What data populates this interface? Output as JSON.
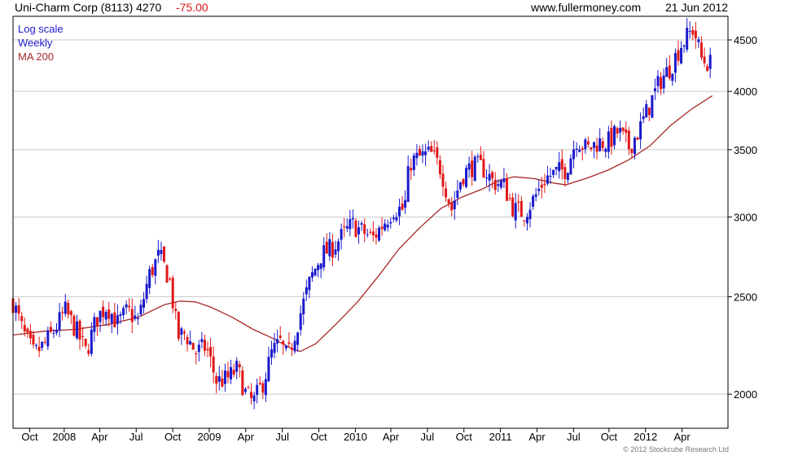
{
  "header": {
    "instrument": "Uni-Charm Corp (8113) 4270",
    "change": "-75.00",
    "site": "www.fullermoney.com",
    "date": "21 Jun 2012"
  },
  "legend": {
    "scale_label": "Log scale",
    "period_label": "Weekly",
    "ma_label": "MA 200"
  },
  "footer": {
    "copyright": "© 2012 Stockcube Research Ltd"
  },
  "colors": {
    "up": "#1a1acc",
    "down": "#e01818",
    "ma": "#a82828",
    "grid": "#c8c8c8",
    "axis": "#000000",
    "text": "#000000",
    "scale_text": "#1a1acc",
    "period_text": "#1a1acc",
    "ma_text": "#a82828",
    "change_text": "#e01818",
    "footer_text": "#777777"
  },
  "chart_data": {
    "type": "candlestick",
    "scale": "log",
    "period": "weekly",
    "ylim": [
      1850,
      4750
    ],
    "yticks": [
      2000,
      2500,
      3000,
      3500,
      4000,
      4500
    ],
    "grid": true,
    "x_ticks": [
      "Oct",
      "2008",
      "Apr",
      "Jul",
      "Oct",
      "2009",
      "Apr",
      "Jul",
      "Oct",
      "2010",
      "Apr",
      "Jul",
      "Oct",
      "2011",
      "Apr",
      "Jul",
      "Oct",
      "2012",
      "Apr"
    ],
    "x_tick_positions": [
      1.6,
      4.9,
      8.3,
      11.8,
      15.3,
      18.8,
      22.3,
      25.8,
      29.3,
      32.8,
      36.2,
      39.7,
      43.2,
      46.7,
      50.2,
      53.7,
      57.1,
      60.6,
      64.1
    ],
    "x_range": [
      0,
      68.5
    ],
    "ma_line": [
      [
        0,
        2290
      ],
      [
        3,
        2310
      ],
      [
        6,
        2320
      ],
      [
        9,
        2345
      ],
      [
        12,
        2385
      ],
      [
        14.5,
        2455
      ],
      [
        16,
        2475
      ],
      [
        17.5,
        2470
      ],
      [
        19,
        2440
      ],
      [
        21,
        2385
      ],
      [
        23,
        2320
      ],
      [
        25,
        2270
      ],
      [
        26.5,
        2225
      ],
      [
        27.5,
        2205
      ],
      [
        29,
        2245
      ],
      [
        31,
        2350
      ],
      [
        33,
        2470
      ],
      [
        35,
        2620
      ],
      [
        37,
        2790
      ],
      [
        39,
        2930
      ],
      [
        41,
        3060
      ],
      [
        43,
        3140
      ],
      [
        45,
        3200
      ],
      [
        46.5,
        3260
      ],
      [
        48,
        3290
      ],
      [
        50,
        3275
      ],
      [
        52,
        3240
      ],
      [
        53,
        3230
      ],
      [
        55,
        3280
      ],
      [
        57,
        3340
      ],
      [
        59,
        3420
      ],
      [
        61,
        3530
      ],
      [
        63,
        3700
      ],
      [
        65,
        3840
      ],
      [
        67,
        3960
      ]
    ],
    "candle_anchors": [
      [
        0,
        2470
      ],
      [
        1,
        2300
      ],
      [
        2,
        2190
      ],
      [
        3,
        2240
      ],
      [
        4,
        2320
      ],
      [
        5,
        2420
      ],
      [
        6,
        2320
      ],
      [
        7,
        2200
      ],
      [
        8,
        2380
      ],
      [
        9,
        2450
      ],
      [
        10,
        2350
      ],
      [
        11,
        2420
      ],
      [
        12,
        2360
      ],
      [
        13,
        2620
      ],
      [
        14,
        2750
      ],
      [
        15,
        2600
      ],
      [
        15.8,
        2280
      ],
      [
        16.5,
        2300
      ],
      [
        17.5,
        2200
      ],
      [
        18.5,
        2230
      ],
      [
        19.5,
        2060
      ],
      [
        20.5,
        2070
      ],
      [
        21.5,
        2120
      ],
      [
        22.3,
        2000
      ],
      [
        23,
        1960
      ],
      [
        24,
        2060
      ],
      [
        24.8,
        2200
      ],
      [
        25.6,
        2250
      ],
      [
        26.3,
        2170
      ],
      [
        27.5,
        2400
      ],
      [
        28.5,
        2600
      ],
      [
        29.5,
        2750
      ],
      [
        30.5,
        2790
      ],
      [
        31.5,
        2870
      ],
      [
        32.5,
        2950
      ],
      [
        33.5,
        2900
      ],
      [
        34.5,
        2860
      ],
      [
        35.5,
        2960
      ],
      [
        36.5,
        3060
      ],
      [
        37.5,
        3050
      ],
      [
        38,
        3400
      ],
      [
        39,
        3440
      ],
      [
        40,
        3470
      ],
      [
        41,
        3350
      ],
      [
        42,
        3050
      ],
      [
        43,
        3300
      ],
      [
        44,
        3370
      ],
      [
        45,
        3360
      ],
      [
        46,
        3250
      ],
      [
        47,
        3230
      ],
      [
        48,
        3050
      ],
      [
        49,
        3030
      ],
      [
        50,
        3140
      ],
      [
        51,
        3280
      ],
      [
        52,
        3320
      ],
      [
        53,
        3350
      ],
      [
        54,
        3590
      ],
      [
        55,
        3500
      ],
      [
        56,
        3560
      ],
      [
        57,
        3560
      ],
      [
        58,
        3650
      ],
      [
        59,
        3520
      ],
      [
        60,
        3660
      ],
      [
        61,
        3880
      ],
      [
        62,
        4100
      ],
      [
        63,
        4230
      ],
      [
        64,
        4450
      ],
      [
        65.2,
        4620
      ],
      [
        66,
        4300
      ],
      [
        66.8,
        4260
      ]
    ],
    "candle_count": 241
  }
}
